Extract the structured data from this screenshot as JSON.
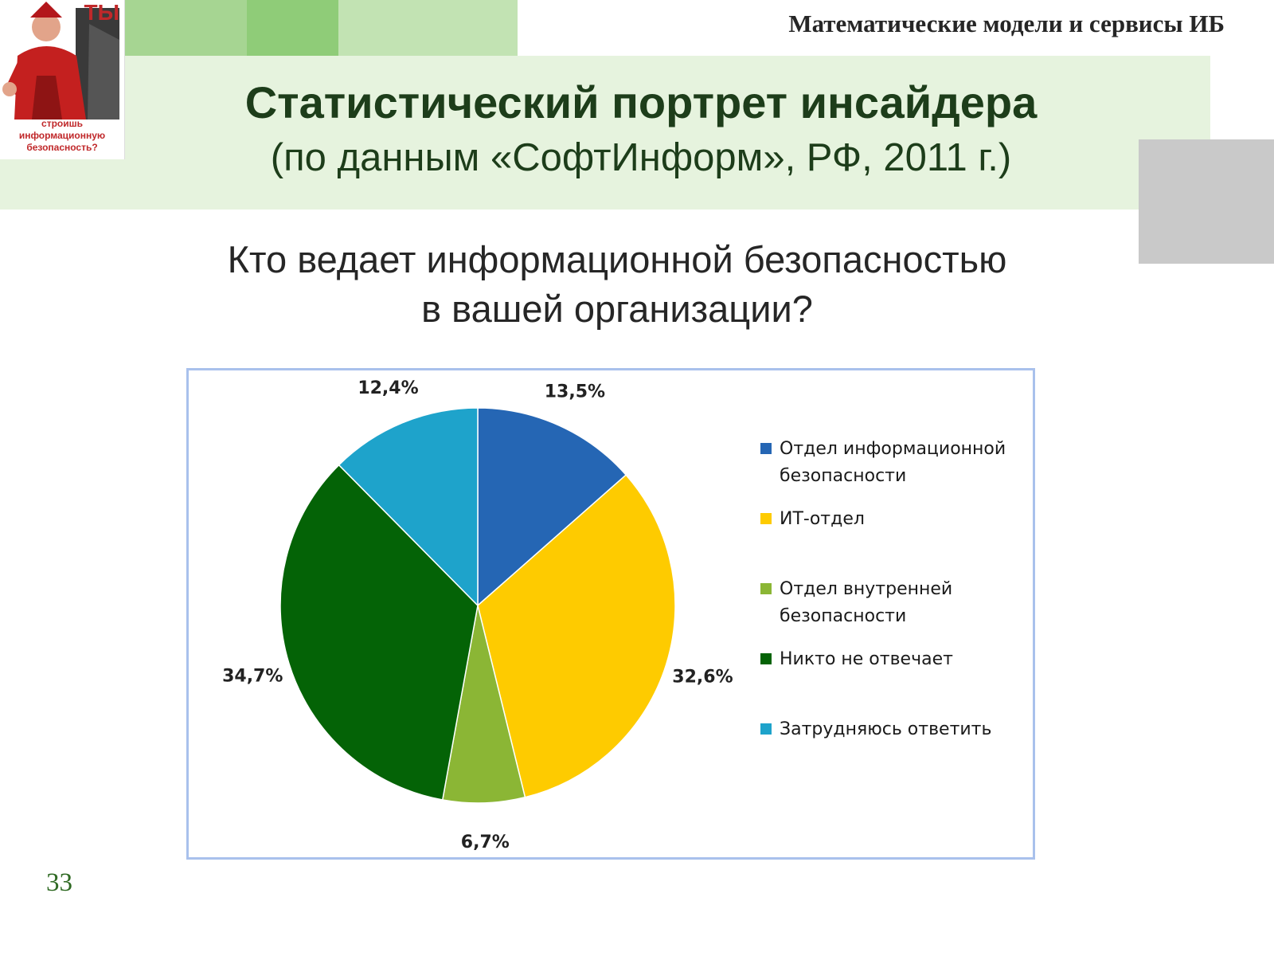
{
  "header": {
    "course": "Математические модели и сервисы ИБ",
    "title": "Статистический портрет инсайдера",
    "subtitle": "(по данным «СофтИнформ», РФ, 2011 г.)"
  },
  "poster": {
    "headline": "ТЫ",
    "lines": [
      "строишь",
      "информационную",
      "безопасность?"
    ]
  },
  "question": {
    "line1": "Кто ведает информационной безопасностью",
    "line2": "в вашей организации?"
  },
  "chart_data": {
    "type": "pie",
    "title": "",
    "legend_position": "right",
    "start_angle": "12 o'clock, clockwise",
    "slices": [
      {
        "name": "Отдел информационной безопасности",
        "legend_lines": [
          "Отдел информационной",
          "безопасности"
        ],
        "value": 13.5,
        "label": "13,5%",
        "color": "#2566b4"
      },
      {
        "name": "ИТ-отдел",
        "legend_lines": [
          "ИТ-отдел"
        ],
        "value": 32.6,
        "label": "32,6%",
        "color": "#fecb00"
      },
      {
        "name": "Отдел внутренней безопасности",
        "legend_lines": [
          "Отдел внутренней",
          "безопасности"
        ],
        "value": 6.7,
        "label": "6,7%",
        "color": "#8bb635"
      },
      {
        "name": "Никто не отвечает",
        "legend_lines": [
          "Никто не отвечает"
        ],
        "value": 34.7,
        "label": "34,7%",
        "color": "#046306"
      },
      {
        "name": "Затрудняюсь ответить",
        "legend_lines": [
          "Затрудняюсь ответить"
        ],
        "value": 12.4,
        "label": "12,4%",
        "color": "#1ea3cb"
      }
    ]
  },
  "footer": {
    "page_number": "33"
  }
}
